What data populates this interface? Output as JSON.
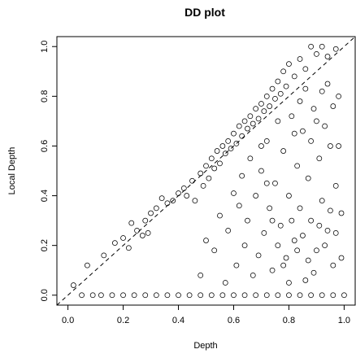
{
  "chart_data": {
    "type": "scatter",
    "title": "DD plot",
    "xlabel": "Depth",
    "ylabel": "Local Depth",
    "xlim": [
      -0.04,
      1.04
    ],
    "ylim": [
      -0.04,
      1.04
    ],
    "x_ticks": [
      "0.0",
      "0.2",
      "0.4",
      "0.6",
      "0.8",
      "1.0"
    ],
    "y_ticks": [
      "0.0",
      "0.2",
      "0.4",
      "0.6",
      "0.8",
      "1.0"
    ],
    "marker": "open-circle",
    "reference_line": "y = x (dashed)",
    "grid": false,
    "legend": "none",
    "series": [
      {
        "points": [
          [
            0.02,
            0.04
          ],
          [
            0.07,
            0.12
          ],
          [
            0.13,
            0.16
          ],
          [
            0.17,
            0.21
          ],
          [
            0.2,
            0.23
          ],
          [
            0.22,
            0.19
          ],
          [
            0.23,
            0.29
          ],
          [
            0.25,
            0.26
          ],
          [
            0.27,
            0.24
          ],
          [
            0.28,
            0.3
          ],
          [
            0.29,
            0.25
          ],
          [
            0.3,
            0.33
          ],
          [
            0.32,
            0.35
          ],
          [
            0.34,
            0.39
          ],
          [
            0.36,
            0.37
          ],
          [
            0.38,
            0.38
          ],
          [
            0.4,
            0.41
          ],
          [
            0.42,
            0.43
          ],
          [
            0.43,
            0.4
          ],
          [
            0.45,
            0.46
          ],
          [
            0.46,
            0.38
          ],
          [
            0.48,
            0.49
          ],
          [
            0.49,
            0.44
          ],
          [
            0.5,
            0.52
          ],
          [
            0.51,
            0.47
          ],
          [
            0.52,
            0.55
          ],
          [
            0.53,
            0.51
          ],
          [
            0.54,
            0.58
          ],
          [
            0.55,
            0.53
          ],
          [
            0.56,
            0.6
          ],
          [
            0.57,
            0.57
          ],
          [
            0.58,
            0.62
          ],
          [
            0.59,
            0.59
          ],
          [
            0.6,
            0.65
          ],
          [
            0.61,
            0.61
          ],
          [
            0.62,
            0.68
          ],
          [
            0.63,
            0.64
          ],
          [
            0.64,
            0.7
          ],
          [
            0.65,
            0.67
          ],
          [
            0.66,
            0.72
          ],
          [
            0.67,
            0.69
          ],
          [
            0.68,
            0.75
          ],
          [
            0.69,
            0.71
          ],
          [
            0.7,
            0.77
          ],
          [
            0.71,
            0.74
          ],
          [
            0.72,
            0.8
          ],
          [
            0.73,
            0.76
          ],
          [
            0.74,
            0.83
          ],
          [
            0.75,
            0.79
          ],
          [
            0.76,
            0.86
          ],
          [
            0.77,
            0.81
          ],
          [
            0.78,
            0.9
          ],
          [
            0.79,
            0.84
          ],
          [
            0.8,
            0.93
          ],
          [
            0.82,
            0.88
          ],
          [
            0.84,
            0.95
          ],
          [
            0.86,
            0.91
          ],
          [
            0.88,
            1.0
          ],
          [
            0.9,
            0.97
          ],
          [
            0.92,
            1.0
          ],
          [
            0.94,
            0.96
          ],
          [
            0.97,
            0.99
          ],
          [
            0.48,
            0.08
          ],
          [
            0.5,
            0.22
          ],
          [
            0.53,
            0.18
          ],
          [
            0.55,
            0.32
          ],
          [
            0.57,
            0.05
          ],
          [
            0.58,
            0.26
          ],
          [
            0.6,
            0.41
          ],
          [
            0.61,
            0.12
          ],
          [
            0.62,
            0.36
          ],
          [
            0.63,
            0.48
          ],
          [
            0.64,
            0.2
          ],
          [
            0.65,
            0.3
          ],
          [
            0.66,
            0.55
          ],
          [
            0.67,
            0.08
          ],
          [
            0.68,
            0.4
          ],
          [
            0.69,
            0.16
          ],
          [
            0.7,
            0.5
          ],
          [
            0.71,
            0.25
          ],
          [
            0.72,
            0.62
          ],
          [
            0.73,
            0.35
          ],
          [
            0.74,
            0.1
          ],
          [
            0.75,
            0.45
          ],
          [
            0.76,
            0.7
          ],
          [
            0.77,
            0.28
          ],
          [
            0.78,
            0.58
          ],
          [
            0.79,
            0.15
          ],
          [
            0.8,
            0.4
          ],
          [
            0.81,
            0.72
          ],
          [
            0.82,
            0.22
          ],
          [
            0.83,
            0.52
          ],
          [
            0.84,
            0.35
          ],
          [
            0.85,
            0.66
          ],
          [
            0.86,
            0.06
          ],
          [
            0.87,
            0.47
          ],
          [
            0.88,
            0.3
          ],
          [
            0.89,
            0.75
          ],
          [
            0.9,
            0.18
          ],
          [
            0.91,
            0.55
          ],
          [
            0.92,
            0.38
          ],
          [
            0.93,
            0.68
          ],
          [
            0.94,
            0.26
          ],
          [
            0.95,
            0.6
          ],
          [
            0.96,
            0.12
          ],
          [
            0.97,
            0.44
          ],
          [
            0.98,
            0.8
          ],
          [
            0.99,
            0.33
          ],
          [
            0.7,
            0.6
          ],
          [
            0.72,
            0.45
          ],
          [
            0.74,
            0.3
          ],
          [
            0.76,
            0.2
          ],
          [
            0.78,
            0.12
          ],
          [
            0.8,
            0.05
          ],
          [
            0.82,
            0.65
          ],
          [
            0.84,
            0.78
          ],
          [
            0.86,
            0.83
          ],
          [
            0.88,
            0.62
          ],
          [
            0.9,
            0.7
          ],
          [
            0.92,
            0.82
          ],
          [
            0.94,
            0.85
          ],
          [
            0.96,
            0.76
          ],
          [
            0.98,
            0.6
          ],
          [
            0.81,
            0.3
          ],
          [
            0.83,
            0.18
          ],
          [
            0.85,
            0.24
          ],
          [
            0.87,
            0.14
          ],
          [
            0.89,
            0.09
          ],
          [
            0.91,
            0.28
          ],
          [
            0.93,
            0.2
          ],
          [
            0.95,
            0.34
          ],
          [
            0.97,
            0.25
          ],
          [
            0.99,
            0.15
          ],
          [
            0.05,
            0.0
          ],
          [
            0.09,
            0.0
          ],
          [
            0.12,
            0.0
          ],
          [
            0.16,
            0.0
          ],
          [
            0.2,
            0.0
          ],
          [
            0.24,
            0.0
          ],
          [
            0.28,
            0.0
          ],
          [
            0.32,
            0.0
          ],
          [
            0.36,
            0.0
          ],
          [
            0.4,
            0.0
          ],
          [
            0.44,
            0.0
          ],
          [
            0.48,
            0.0
          ],
          [
            0.52,
            0.0
          ],
          [
            0.56,
            0.0
          ],
          [
            0.6,
            0.0
          ],
          [
            0.64,
            0.0
          ],
          [
            0.68,
            0.0
          ],
          [
            0.72,
            0.0
          ],
          [
            0.76,
            0.0
          ],
          [
            0.8,
            0.0
          ],
          [
            0.84,
            0.0
          ],
          [
            0.88,
            0.0
          ],
          [
            0.92,
            0.0
          ],
          [
            0.96,
            0.0
          ],
          [
            1.0,
            0.0
          ]
        ]
      }
    ]
  }
}
